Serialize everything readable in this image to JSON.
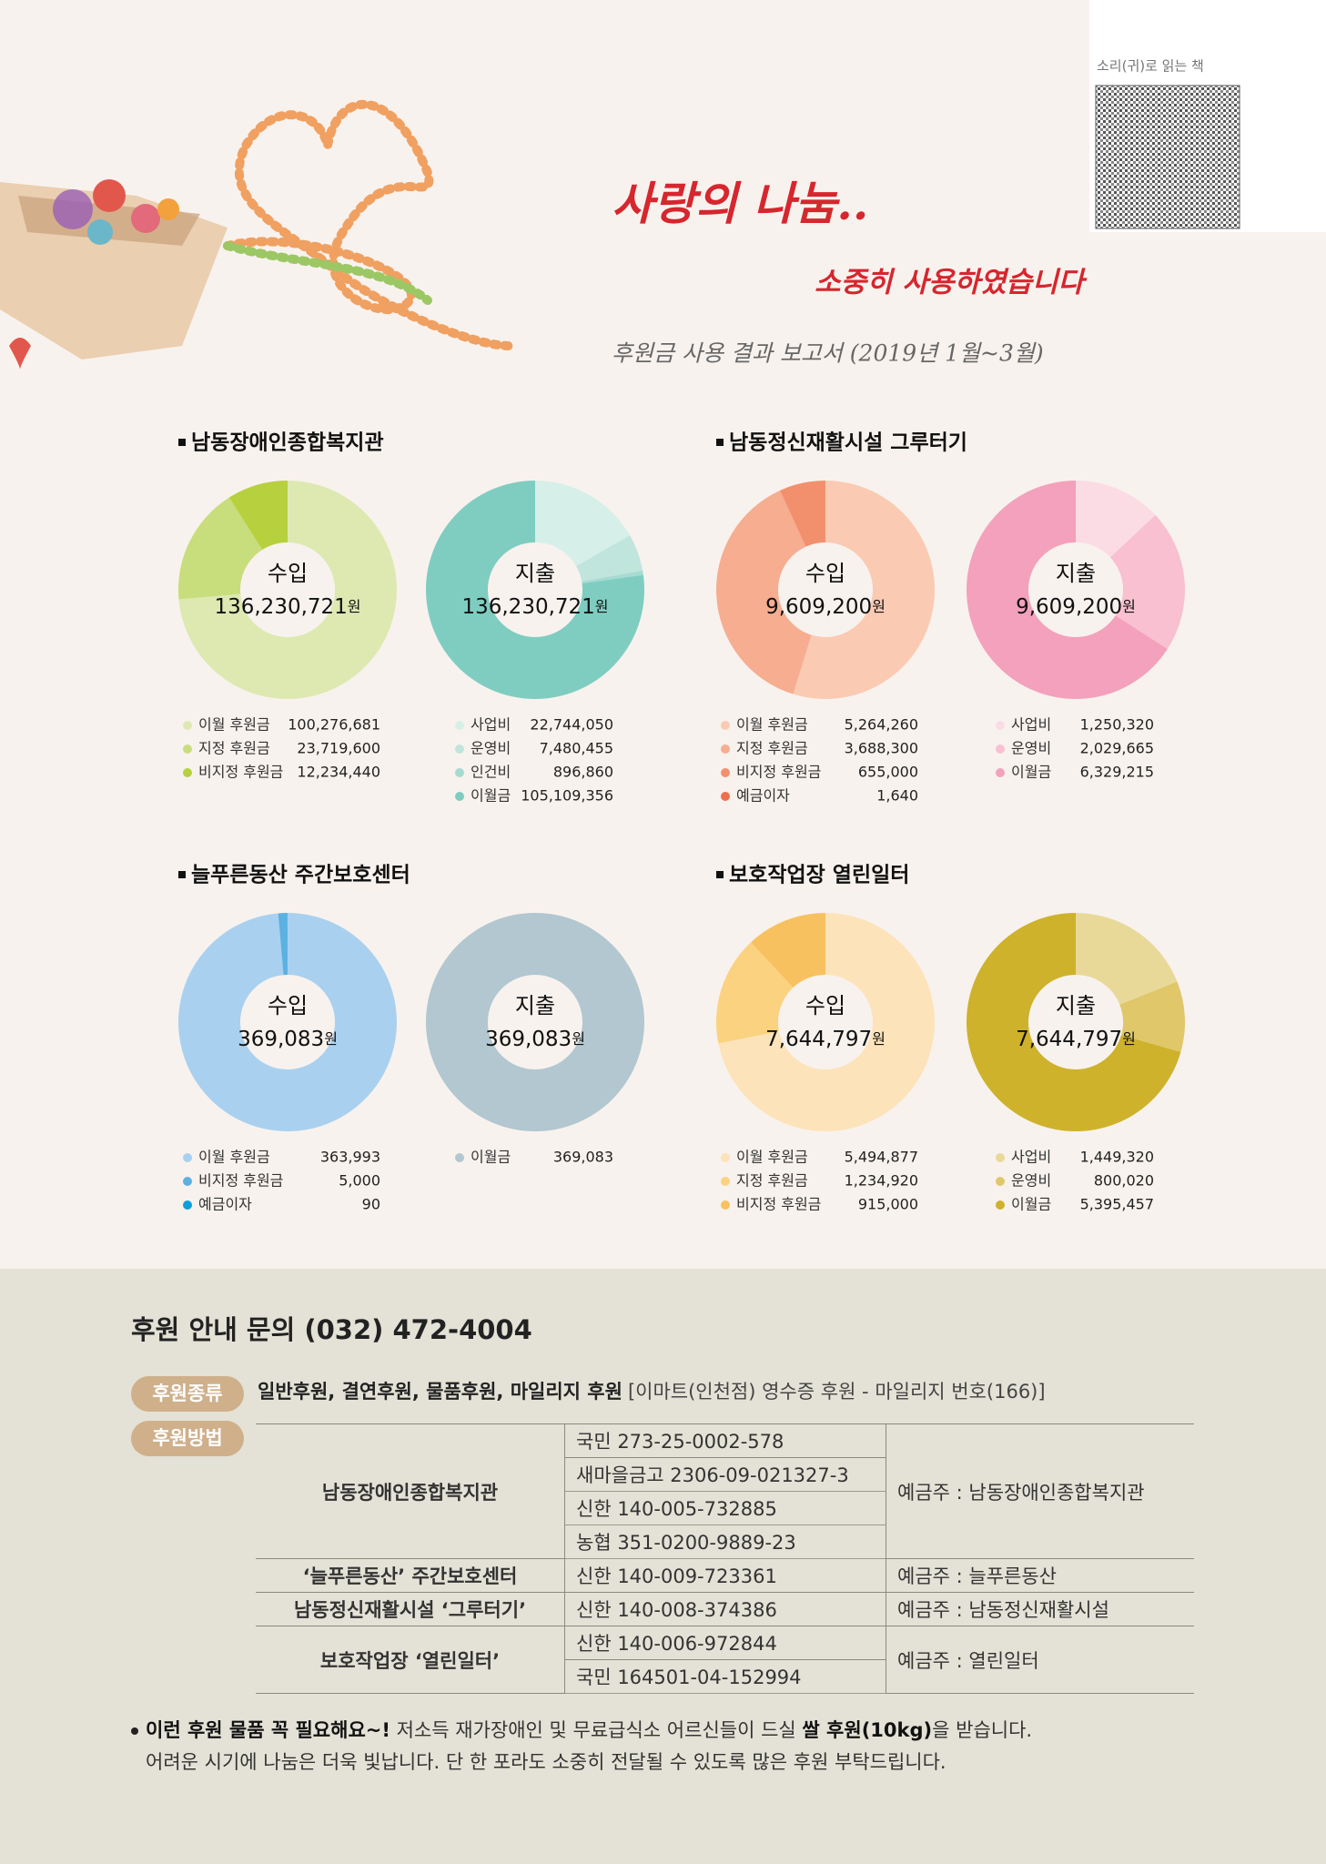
{
  "header": {
    "title": "사랑의 나눔..",
    "subtitle": "소중히 사용하였습니다",
    "report": "후원금 사용 결과 보고서 (2019년 1월~3월)",
    "qr_caption": "소리(귀)로 읽는 책"
  },
  "chart_data": [
    {
      "type": "donut",
      "title": "남동장애인종합복지관",
      "center_label": "수입",
      "total": {
        "value": 136230721,
        "label": "136,230,721"
      },
      "unit": "원",
      "categories": [
        "이월 후원금",
        "지정 후원금",
        "비지정 후원금"
      ],
      "values": [
        100276681,
        23719600,
        12234440
      ],
      "value_labels": [
        "100,276,681",
        "23,719,600",
        "12,234,440"
      ],
      "colors": [
        "#dde9b1",
        "#c8dd7c",
        "#b7d03e"
      ]
    },
    {
      "type": "donut",
      "center_label": "지출",
      "total": {
        "value": 136230721,
        "label": "136,230,721"
      },
      "unit": "원",
      "categories": [
        "사업비",
        "운영비",
        "인건비",
        "이월금"
      ],
      "values": [
        22744050,
        7480455,
        896860,
        105109356
      ],
      "value_labels": [
        "22,744,050",
        "7,480,455",
        "896,860",
        "105,109,356"
      ],
      "colors": [
        "#d7efe9",
        "#c0e5dd",
        "#a6dbd1",
        "#7fcdc1"
      ]
    },
    {
      "type": "donut",
      "title": "남동정신재활시설 그루터기",
      "center_label": "수입",
      "total": {
        "value": 9609200,
        "label": "9,609,200"
      },
      "unit": "원",
      "categories": [
        "이월 후원금",
        "지정 후원금",
        "비지정 후원금",
        "예금이자"
      ],
      "values": [
        5264260,
        3688300,
        655000,
        1640
      ],
      "value_labels": [
        "5,264,260",
        "3,688,300",
        "655,000",
        "1,640"
      ],
      "colors": [
        "#fbcab2",
        "#f6ad90",
        "#f2906d",
        "#ee6e4e"
      ]
    },
    {
      "type": "donut",
      "center_label": "지출",
      "total": {
        "value": 9609200,
        "label": "9,609,200"
      },
      "unit": "원",
      "categories": [
        "사업비",
        "운영비",
        "이월금"
      ],
      "values": [
        1250320,
        2029665,
        6329215
      ],
      "value_labels": [
        "1,250,320",
        "2,029,665",
        "6,329,215"
      ],
      "colors": [
        "#fbdce5",
        "#f8c0d1",
        "#f3a1bd"
      ]
    },
    {
      "type": "donut",
      "title": "늘푸른동산 주간보호센터",
      "center_label": "수입",
      "total": {
        "value": 369083,
        "label": "369,083"
      },
      "unit": "원",
      "categories": [
        "이월 후원금",
        "비지정 후원금",
        "예금이자"
      ],
      "values": [
        363993,
        5000,
        90
      ],
      "value_labels": [
        "363,993",
        "5,000",
        "90"
      ],
      "colors": [
        "#a9d1ef",
        "#5cb1e0",
        "#0b9fdb"
      ]
    },
    {
      "type": "donut",
      "center_label": "지출",
      "total": {
        "value": 369083,
        "label": "369,083"
      },
      "unit": "원",
      "categories": [
        "이월금"
      ],
      "values": [
        369083
      ],
      "value_labels": [
        "369,083"
      ],
      "colors": [
        "#b2c7cf"
      ]
    },
    {
      "type": "donut",
      "title": "보호작업장 열린일터",
      "center_label": "수입",
      "total": {
        "value": 7644797,
        "label": "7,644,797"
      },
      "unit": "원",
      "categories": [
        "이월 후원금",
        "지정 후원금",
        "비지정 후원금"
      ],
      "values": [
        5494877,
        1234920,
        915000
      ],
      "value_labels": [
        "5,494,877",
        "1,234,920",
        "915,000"
      ],
      "colors": [
        "#fde3b9",
        "#fbd280",
        "#f8c15f"
      ]
    },
    {
      "type": "donut",
      "center_label": "지출",
      "total": {
        "value": 7644797,
        "label": "7,644,797"
      },
      "unit": "원",
      "categories": [
        "사업비",
        "운영비",
        "이월금"
      ],
      "values": [
        1449320,
        800020,
        5395457
      ],
      "value_labels": [
        "1,449,320",
        "800,020",
        "5,395,457"
      ],
      "colors": [
        "#e9d999",
        "#dfc76a",
        "#ceb22b"
      ]
    }
  ],
  "contact": {
    "title": "후원 안내 문의 (032) 472-4004",
    "types_badge": "후원종류",
    "types": "일반후원, 결연후원, 물품후원, 마일리지 후원",
    "types_note": "[이마트(인천점) 영수증 후원 - 마일리지 번호(166)]",
    "method_badge": "후원방법",
    "table": {
      "orgs": [
        {
          "name": "남동장애인종합복지관",
          "accounts": [
            "국민 273-25-0002-578",
            "새마을금고 2306-09-021327-3",
            "신한 140-005-732885",
            "농협 351-0200-9889-23"
          ],
          "holder": "예금주 : 남동장애인종합복지관"
        },
        {
          "name": "‘늘푸른동산’ 주간보호센터",
          "accounts": [
            "신한 140-009-723361"
          ],
          "holder": "예금주 : 늘푸른동산"
        },
        {
          "name": "남동정신재활시설 ‘그루터기’",
          "accounts": [
            "신한 140-008-374386"
          ],
          "holder": "예금주 : 남동정신재활시설"
        },
        {
          "name": "보호작업장 ‘열린일터’",
          "accounts": [
            "신한 140-006-972844",
            "국민 164501-04-152994"
          ],
          "holder": "예금주 : 열린일터"
        }
      ]
    },
    "note": {
      "lead": "이런 후원 물품 꼭 필요해요~!",
      "text": "저소득 재가장애인 및 무료급식소 어르신들이 드실",
      "item": "쌀 후원(10kg)",
      "tail": "을 받습니다.",
      "line2": "어려운 시기에 나눔은 더욱 빛납니다. 단 한 포라도 소중히 전달될 수 있도록 많은 후원 부탁드립니다."
    }
  }
}
